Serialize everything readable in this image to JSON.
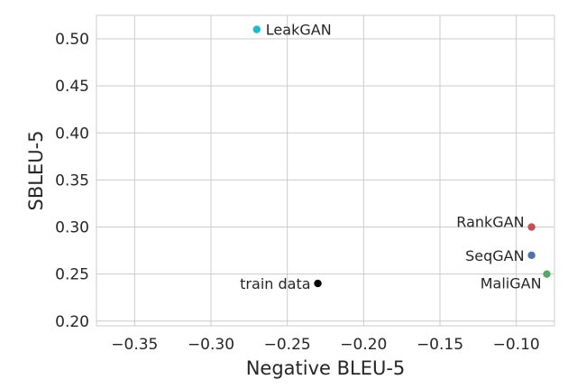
{
  "chart_data": {
    "type": "scatter",
    "title": "",
    "xlabel": "Negative BLEU-5",
    "ylabel": "SBLEU-5",
    "xlim": [
      -0.375,
      -0.075
    ],
    "ylim": [
      0.195,
      0.525
    ],
    "xticks": [
      -0.35,
      -0.3,
      -0.25,
      -0.2,
      -0.15,
      -0.1
    ],
    "xtick_labels": [
      "−0.35",
      "−0.30",
      "−0.25",
      "−0.20",
      "−0.15",
      "−0.10"
    ],
    "yticks": [
      0.2,
      0.25,
      0.3,
      0.35,
      0.4,
      0.45,
      0.5
    ],
    "ytick_labels": [
      "0.20",
      "0.25",
      "0.30",
      "0.35",
      "0.40",
      "0.45",
      "0.50"
    ],
    "grid": true,
    "points": [
      {
        "label": "LeakGAN",
        "x": -0.27,
        "y": 0.51,
        "color": "#17becf",
        "label_side": "right"
      },
      {
        "label": "RankGAN",
        "x": -0.09,
        "y": 0.3,
        "color": "#c44e52",
        "label_side": "left"
      },
      {
        "label": "SeqGAN",
        "x": -0.09,
        "y": 0.27,
        "color": "#4c72b0",
        "label_side": "left"
      },
      {
        "label": "MaliGAN",
        "x": -0.08,
        "y": 0.25,
        "color": "#55a868",
        "label_side": "left-below"
      },
      {
        "label": "train data",
        "x": -0.23,
        "y": 0.24,
        "color": "#000000",
        "label_side": "left"
      }
    ]
  }
}
